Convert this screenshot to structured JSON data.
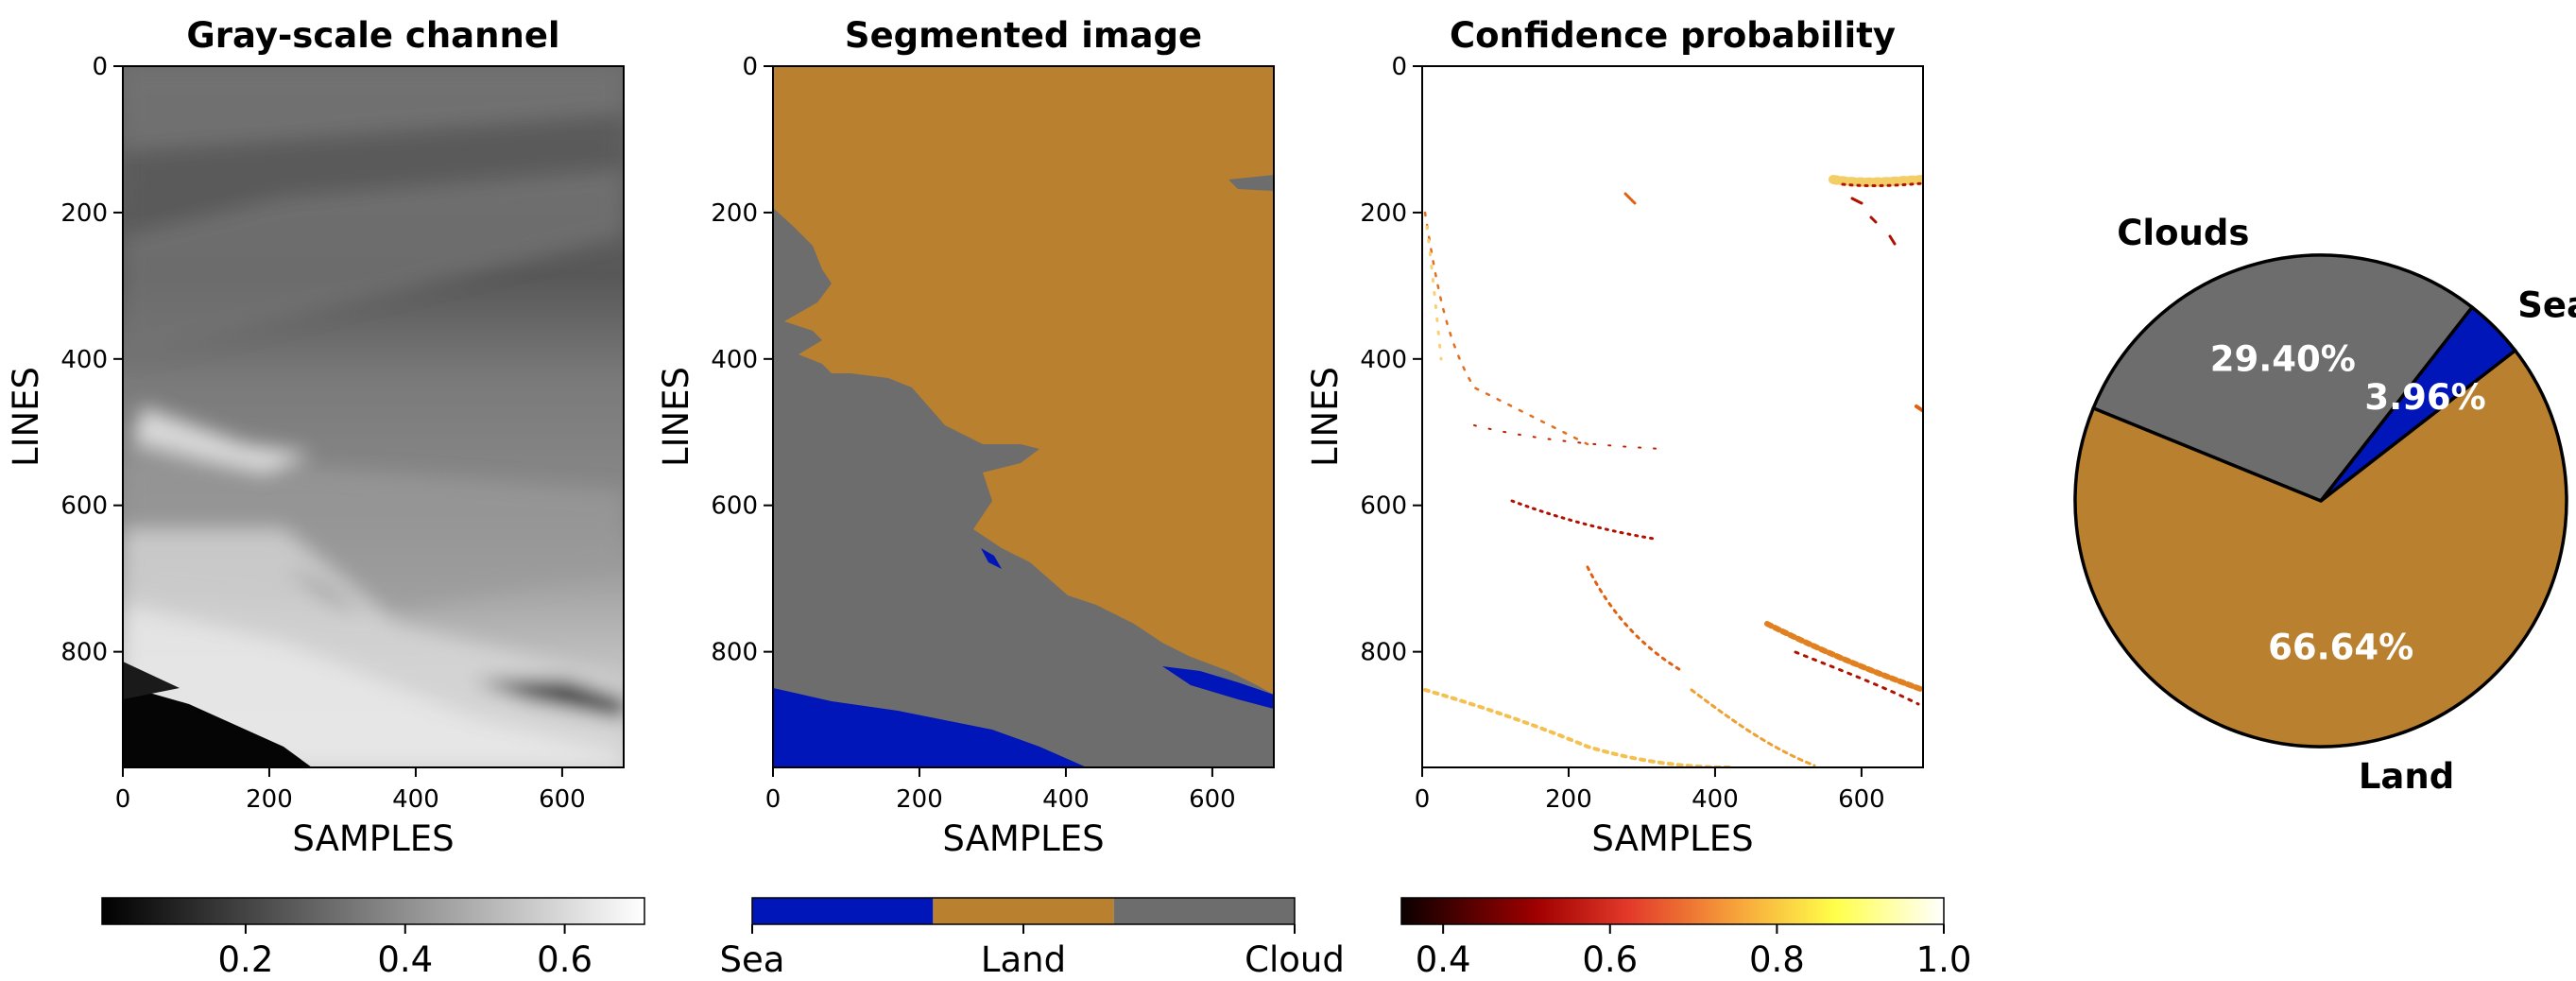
{
  "chart_data": [
    {
      "type": "heatmap",
      "title": "Gray-scale channel",
      "xlabel": "SAMPLES",
      "ylabel": "LINES",
      "xlim": [
        0,
        684
      ],
      "ylim": [
        958,
        0
      ],
      "xticks": [
        "0",
        "200",
        "400",
        "600"
      ],
      "yticks": [
        "0",
        "200",
        "400",
        "600",
        "800"
      ],
      "colormap": "gray",
      "colorbar": {
        "range": [
          0.02,
          0.7
        ],
        "ticks": [
          "0.2",
          "0.4",
          "0.6"
        ],
        "orientation": "horizontal",
        "position": "bottom"
      }
    },
    {
      "type": "heatmap",
      "title": "Segmented image",
      "xlabel": "SAMPLES",
      "ylabel": "LINES",
      "xlim": [
        0,
        684
      ],
      "ylim": [
        958,
        0
      ],
      "xticks": [
        "0",
        "200",
        "400",
        "600"
      ],
      "yticks": [
        "0",
        "200",
        "400",
        "600",
        "800"
      ],
      "classes": [
        {
          "name": "Sea",
          "color": "#0016b8"
        },
        {
          "name": "Land",
          "color": "#b8802f"
        },
        {
          "name": "Cloud",
          "color": "#6d6d6d"
        }
      ],
      "colorbar": {
        "ticks": [
          "Sea",
          "Land",
          "Cloud"
        ],
        "orientation": "horizontal",
        "position": "bottom"
      }
    },
    {
      "type": "heatmap",
      "title": "Confidence probability",
      "xlabel": "SAMPLES",
      "ylabel": "LINES",
      "xlim": [
        0,
        684
      ],
      "ylim": [
        958,
        0
      ],
      "xticks": [
        "0",
        "200",
        "400",
        "600"
      ],
      "yticks": [
        "0",
        "200",
        "400",
        "600",
        "800"
      ],
      "colormap": "hot",
      "colorbar": {
        "range": [
          0.35,
          1.0
        ],
        "ticks": [
          "0.4",
          "0.6",
          "0.8",
          "1.0"
        ],
        "orientation": "horizontal",
        "position": "bottom"
      }
    },
    {
      "type": "pie",
      "slices": [
        {
          "name": "Clouds",
          "value": 29.4,
          "label": "29.40%",
          "color": "#6d6d6d"
        },
        {
          "name": "Land",
          "value": 66.64,
          "label": "66.64%",
          "color": "#b8802f"
        },
        {
          "name": "Sea",
          "value": 3.96,
          "label": "3.96%",
          "color": "#0016b8"
        }
      ]
    }
  ]
}
